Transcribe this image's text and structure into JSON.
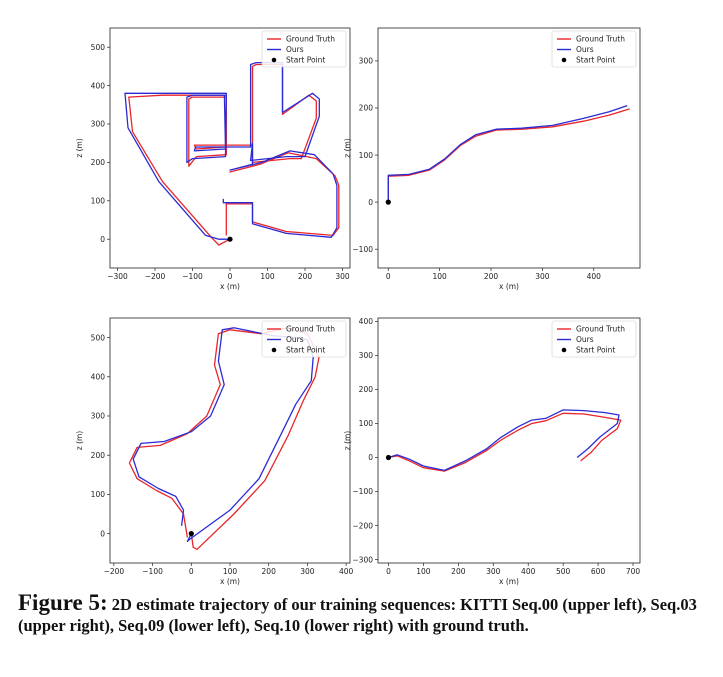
{
  "caption": {
    "figure_label": "Figure 5:",
    "text": "2D estimate trajectory of our training sequences: KITTI Seq.00 (upper left), Seq.03 (upper right), Seq.09 (lower left), Seq.10 (lower right) with ground truth."
  },
  "colors": {
    "ground_truth": "#e8262a",
    "ours": "#2b2bd6",
    "start_point": "#000000"
  },
  "chart_data": [
    {
      "type": "line",
      "xlabel": "x (m)",
      "ylabel": "z (m)",
      "xlim": [
        -320,
        320
      ],
      "ylim": [
        -75,
        550
      ],
      "xticks": [
        -300,
        -200,
        -100,
        0,
        100,
        200,
        300
      ],
      "yticks": [
        0,
        100,
        200,
        300,
        400,
        500
      ],
      "legend_position": "top-right",
      "legend": [
        "Ground Truth",
        "Ours",
        "Start Point"
      ],
      "start_point": [
        0,
        0
      ],
      "series": [
        {
          "name": "Ground Truth",
          "points": [
            [
              0,
              0
            ],
            [
              -30,
              -15
            ],
            [
              -50,
              5
            ],
            [
              -180,
              150
            ],
            [
              -260,
              280
            ],
            [
              -270,
              370
            ],
            [
              -180,
              375
            ],
            [
              -120,
              375
            ],
            [
              -10,
              375
            ],
            [
              -10,
              220
            ],
            [
              -90,
              215
            ],
            [
              -110,
              190
            ],
            [
              -110,
              365
            ],
            [
              -100,
              370
            ],
            [
              -10,
              370
            ],
            [
              -10,
              240
            ],
            [
              -90,
              235
            ],
            [
              -95,
              245
            ],
            [
              60,
              245
            ],
            [
              60,
              450
            ],
            [
              70,
              455
            ],
            [
              140,
              455
            ],
            [
              140,
              375
            ],
            [
              140,
              325
            ],
            [
              210,
              375
            ],
            [
              230,
              360
            ],
            [
              230,
              315
            ],
            [
              190,
              210
            ],
            [
              160,
              210
            ],
            [
              60,
              200
            ],
            [
              60,
              245
            ],
            [
              60,
              190
            ],
            [
              0,
              175
            ],
            [
              80,
              195
            ],
            [
              155,
              225
            ],
            [
              230,
              210
            ],
            [
              280,
              165
            ],
            [
              290,
              140
            ],
            [
              290,
              30
            ],
            [
              275,
              10
            ],
            [
              150,
              20
            ],
            [
              60,
              45
            ],
            [
              60,
              92
            ],
            [
              -10,
              92
            ],
            [
              -10,
              10
            ]
          ]
        },
        {
          "name": "Ours",
          "points": [
            [
              0,
              0
            ],
            [
              -30,
              0
            ],
            [
              -65,
              10
            ],
            [
              -190,
              150
            ],
            [
              -272,
              290
            ],
            [
              -280,
              380
            ],
            [
              -190,
              380
            ],
            [
              -120,
              380
            ],
            [
              -10,
              380
            ],
            [
              -12,
              215
            ],
            [
              -100,
              210
            ],
            [
              -115,
              200
            ],
            [
              -115,
              370
            ],
            [
              -100,
              375
            ],
            [
              -15,
              375
            ],
            [
              -12,
              235
            ],
            [
              -95,
              230
            ],
            [
              -92,
              240
            ],
            [
              55,
              240
            ],
            [
              55,
              455
            ],
            [
              70,
              460
            ],
            [
              140,
              460
            ],
            [
              140,
              380
            ],
            [
              140,
              330
            ],
            [
              220,
              380
            ],
            [
              238,
              365
            ],
            [
              238,
              320
            ],
            [
              200,
              215
            ],
            [
              150,
              215
            ],
            [
              55,
              205
            ],
            [
              60,
              250
            ],
            [
              60,
              195
            ],
            [
              0,
              180
            ],
            [
              85,
              200
            ],
            [
              160,
              230
            ],
            [
              225,
              220
            ],
            [
              275,
              170
            ],
            [
              285,
              140
            ],
            [
              285,
              30
            ],
            [
              270,
              5
            ],
            [
              150,
              15
            ],
            [
              60,
              40
            ],
            [
              60,
              95
            ],
            [
              -18,
              95
            ],
            [
              -18,
              105
            ]
          ]
        }
      ]
    },
    {
      "type": "line",
      "xlabel": "x (m)",
      "ylabel": "z (m)",
      "xlim": [
        -20,
        490
      ],
      "ylim": [
        -140,
        370
      ],
      "xticks": [
        0,
        100,
        200,
        300,
        400
      ],
      "yticks": [
        -100,
        0,
        100,
        200,
        300
      ],
      "legend_position": "top-right",
      "legend": [
        "Ground Truth",
        "Ours",
        "Start Point"
      ],
      "start_point": [
        0,
        0
      ],
      "series": [
        {
          "name": "Ground Truth",
          "points": [
            [
              0,
              0
            ],
            [
              0,
              55
            ],
            [
              40,
              57
            ],
            [
              80,
              68
            ],
            [
              110,
              90
            ],
            [
              140,
              120
            ],
            [
              170,
              140
            ],
            [
              210,
              153
            ],
            [
              260,
              155
            ],
            [
              320,
              160
            ],
            [
              380,
              172
            ],
            [
              430,
              185
            ],
            [
              470,
              198
            ]
          ]
        },
        {
          "name": "Ours",
          "points": [
            [
              0,
              0
            ],
            [
              0,
              57
            ],
            [
              40,
              59
            ],
            [
              80,
              70
            ],
            [
              110,
              92
            ],
            [
              140,
              122
            ],
            [
              170,
              143
            ],
            [
              210,
              155
            ],
            [
              260,
              157
            ],
            [
              320,
              163
            ],
            [
              380,
              178
            ],
            [
              430,
              192
            ],
            [
              465,
              205
            ]
          ]
        }
      ]
    },
    {
      "type": "line",
      "xlabel": "x (m)",
      "ylabel": "z (m)",
      "xlim": [
        -210,
        410
      ],
      "ylim": [
        -75,
        550
      ],
      "xticks": [
        -200,
        -100,
        0,
        100,
        200,
        300,
        400
      ],
      "yticks": [
        0,
        100,
        200,
        300,
        400,
        500
      ],
      "legend_position": "top-right",
      "legend": [
        "Ground Truth",
        "Ours",
        "Start Point"
      ],
      "start_point": [
        0,
        0
      ],
      "series": [
        {
          "name": "Ground Truth",
          "points": [
            [
              0,
              0
            ],
            [
              5,
              -35
            ],
            [
              15,
              -40
            ],
            [
              110,
              50
            ],
            [
              190,
              135
            ],
            [
              250,
              250
            ],
            [
              290,
              340
            ],
            [
              320,
              400
            ],
            [
              330,
              450
            ],
            [
              300,
              510
            ],
            [
              250,
              525
            ],
            [
              180,
              510
            ],
            [
              100,
              520
            ],
            [
              70,
              510
            ],
            [
              60,
              430
            ],
            [
              75,
              380
            ],
            [
              40,
              300
            ],
            [
              -10,
              255
            ],
            [
              -80,
              225
            ],
            [
              -140,
              220
            ],
            [
              -160,
              180
            ],
            [
              -140,
              140
            ],
            [
              -90,
              110
            ],
            [
              -50,
              90
            ],
            [
              -20,
              50
            ],
            [
              -10,
              -10
            ]
          ]
        },
        {
          "name": "Ours",
          "points": [
            [
              0,
              0
            ],
            [
              -10,
              -20
            ],
            [
              -5,
              -15
            ],
            [
              100,
              60
            ],
            [
              175,
              140
            ],
            [
              235,
              260
            ],
            [
              270,
              330
            ],
            [
              310,
              390
            ],
            [
              315,
              450
            ],
            [
              300,
              495
            ],
            [
              270,
              500
            ],
            [
              210,
              505
            ],
            [
              110,
              525
            ],
            [
              80,
              520
            ],
            [
              70,
              440
            ],
            [
              85,
              380
            ],
            [
              50,
              300
            ],
            [
              0,
              260
            ],
            [
              -70,
              235
            ],
            [
              -130,
              230
            ],
            [
              -150,
              190
            ],
            [
              -135,
              145
            ],
            [
              -85,
              115
            ],
            [
              -40,
              95
            ],
            [
              -20,
              60
            ],
            [
              -25,
              20
            ]
          ]
        }
      ]
    },
    {
      "type": "line",
      "xlabel": "x (m)",
      "ylabel": "z (m)",
      "xlim": [
        -30,
        720
      ],
      "ylim": [
        -310,
        410
      ],
      "xticks": [
        0,
        100,
        200,
        300,
        400,
        500,
        600,
        700
      ],
      "yticks": [
        -300,
        -200,
        -100,
        0,
        100,
        200,
        300,
        400
      ],
      "legend_position": "top-right",
      "legend": [
        "Ground Truth",
        "Ours",
        "Start Point"
      ],
      "start_point": [
        0,
        0
      ],
      "series": [
        {
          "name": "Ground Truth",
          "points": [
            [
              0,
              0
            ],
            [
              25,
              5
            ],
            [
              60,
              -10
            ],
            [
              100,
              -30
            ],
            [
              160,
              -40
            ],
            [
              220,
              -15
            ],
            [
              280,
              20
            ],
            [
              320,
              50
            ],
            [
              370,
              80
            ],
            [
              410,
              100
            ],
            [
              450,
              108
            ],
            [
              500,
              130
            ],
            [
              560,
              128
            ],
            [
              620,
              118
            ],
            [
              665,
              110
            ],
            [
              655,
              85
            ],
            [
              610,
              50
            ],
            [
              580,
              15
            ],
            [
              550,
              -10
            ]
          ]
        },
        {
          "name": "Ours",
          "points": [
            [
              0,
              0
            ],
            [
              25,
              8
            ],
            [
              60,
              -5
            ],
            [
              100,
              -25
            ],
            [
              160,
              -38
            ],
            [
              220,
              -10
            ],
            [
              280,
              25
            ],
            [
              320,
              58
            ],
            [
              370,
              90
            ],
            [
              410,
              110
            ],
            [
              450,
              115
            ],
            [
              500,
              140
            ],
            [
              560,
              138
            ],
            [
              620,
              132
            ],
            [
              660,
              125
            ],
            [
              655,
              100
            ],
            [
              605,
              60
            ],
            [
              570,
              25
            ],
            [
              540,
              0
            ]
          ]
        }
      ]
    }
  ]
}
